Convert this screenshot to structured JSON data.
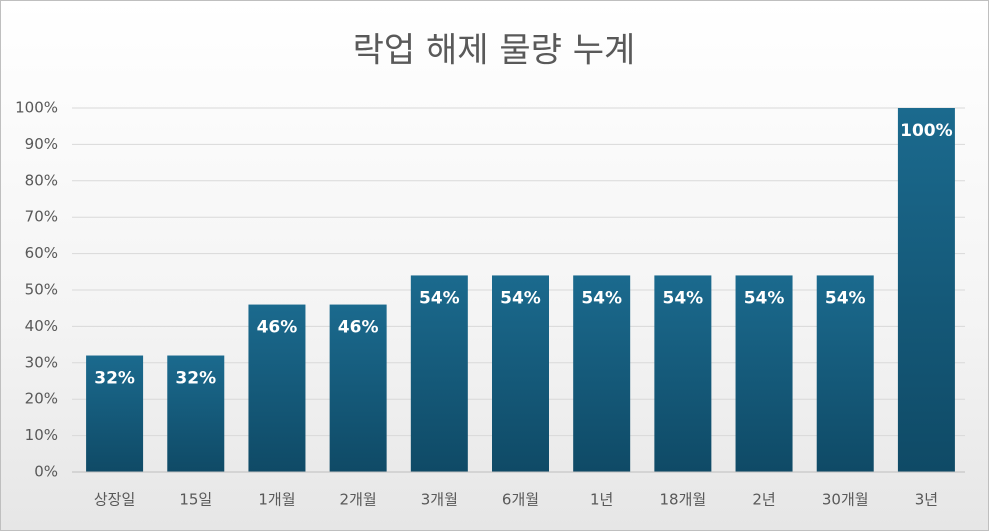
{
  "chart_data": {
    "type": "bar",
    "title": "락업 해제 물량 누계",
    "categories": [
      "상장일",
      "15일",
      "1개월",
      "2개월",
      "3개월",
      "6개월",
      "1년",
      "18개월",
      "2년",
      "30개월",
      "3년"
    ],
    "values": [
      32,
      32,
      46,
      46,
      54,
      54,
      54,
      54,
      54,
      54,
      100
    ],
    "value_labels": [
      "32%",
      "32%",
      "46%",
      "46%",
      "54%",
      "54%",
      "54%",
      "54%",
      "54%",
      "54%",
      "100%"
    ],
    "color": "#15597a",
    "ylim": [
      0,
      100
    ],
    "yticks": [
      {
        "value": 0,
        "label": "0%"
      },
      {
        "value": 10,
        "label": "10%"
      },
      {
        "value": 20,
        "label": "20%"
      },
      {
        "value": 30,
        "label": "30%"
      },
      {
        "value": 40,
        "label": "40%"
      },
      {
        "value": 50,
        "label": "50%"
      },
      {
        "value": 60,
        "label": "60%"
      },
      {
        "value": 70,
        "label": "70%"
      },
      {
        "value": 80,
        "label": "80%"
      },
      {
        "value": 90,
        "label": "90%"
      },
      {
        "value": 100,
        "label": "100%"
      }
    ],
    "grid": true
  }
}
